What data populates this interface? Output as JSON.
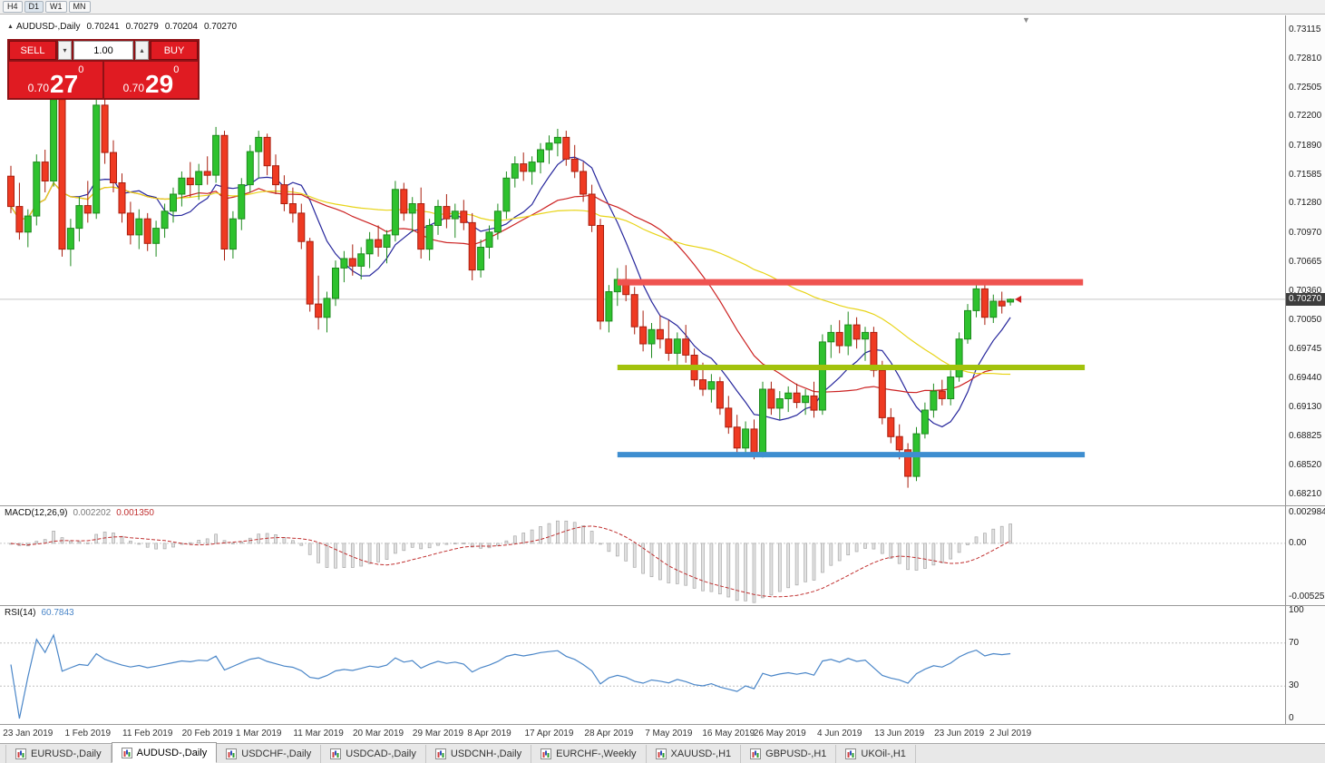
{
  "toolbar": {
    "timeframes": [
      "H4",
      "D1",
      "W1",
      "MN"
    ],
    "active": "D1"
  },
  "icons": {
    "symbol_marker": "▲",
    "chart_shift_marker": "▼",
    "volume_up": "▴",
    "volume_down": "▾"
  },
  "chart_info": {
    "symbol": "AUDUSD-,Daily",
    "open": "0.70241",
    "high": "0.70279",
    "low": "0.70204",
    "close": "0.70270"
  },
  "one_click": {
    "sell_label": "SELL",
    "buy_label": "BUY",
    "volume": "1.00",
    "bid_small": "0.70",
    "bid_big": "27",
    "bid_sup": "0",
    "ask_small": "0.70",
    "ask_big": "29",
    "ask_sup": "0"
  },
  "tabs": {
    "active_index": 1,
    "items": [
      "EURUSD-,Daily",
      "AUDUSD-,Daily",
      "USDCHF-,Daily",
      "USDCAD-,Daily",
      "USDCNH-,Daily",
      "EURCHF-,Weekly",
      "XAUUSD-,H1",
      "GBPUSD-,H1",
      "UKOil-,H1"
    ]
  },
  "chart_data": [
    {
      "type": "candlestick",
      "symbol": "AUDUSD-,Daily",
      "last_ohlc": {
        "open": 0.70241,
        "high": 0.70279,
        "low": 0.70204,
        "close": 0.7027
      },
      "current_price": 0.7027,
      "current_display": "0.70270",
      "y_ticks": [
        "0.73115",
        "0.72810",
        "0.72505",
        "0.72200",
        "0.71890",
        "0.71585",
        "0.71280",
        "0.70970",
        "0.70665",
        "0.70360",
        "0.70050",
        "0.69745",
        "0.69440",
        "0.69130",
        "0.68825",
        "0.68520",
        "0.68210"
      ],
      "x_ticks": [
        {
          "label": "23 Jan 2019",
          "index": 2
        },
        {
          "label": "1 Feb 2019",
          "index": 9
        },
        {
          "label": "11 Feb 2019",
          "index": 16
        },
        {
          "label": "20 Feb 2019",
          "index": 23
        },
        {
          "label": "1 Mar 2019",
          "index": 29
        },
        {
          "label": "11 Mar 2019",
          "index": 36
        },
        {
          "label": "20 Mar 2019",
          "index": 43
        },
        {
          "label": "29 Mar 2019",
          "index": 50
        },
        {
          "label": "8 Apr 2019",
          "index": 56
        },
        {
          "label": "17 Apr 2019",
          "index": 63
        },
        {
          "label": "28 Apr 2019",
          "index": 70
        },
        {
          "label": "7 May 2019",
          "index": 77
        },
        {
          "label": "16 May 2019",
          "index": 84
        },
        {
          "label": "26 May 2019",
          "index": 90
        },
        {
          "label": "4 Jun 2019",
          "index": 97
        },
        {
          "label": "13 Jun 2019",
          "index": 104
        },
        {
          "label": "23 Jun 2019",
          "index": 111
        },
        {
          "label": "2 Jul 2019",
          "index": 117
        }
      ],
      "moving_averages": [
        {
          "name": "ma-fast",
          "period": 8,
          "color": "#26269c"
        },
        {
          "name": "ma-medium",
          "period": 20,
          "color": "#cc2222"
        },
        {
          "name": "ma-slow",
          "period": 45,
          "color": "#e8d418"
        }
      ],
      "horizontal_lines": [
        {
          "name": "resistance-line",
          "price": 0.7045,
          "color": "#ef5350",
          "thickness": 7,
          "from_index": 71,
          "to_index": 125.5
        },
        {
          "name": "mid-support-line",
          "price": 0.6955,
          "color": "#a2c20c",
          "thickness": 6,
          "from_index": 71,
          "to_index": 125.7
        },
        {
          "name": "support-line",
          "price": 0.6863,
          "color": "#3e8ed0",
          "thickness": 6,
          "from_index": 71,
          "to_index": 125.7
        }
      ],
      "candles": [
        [
          0.7157,
          0.7168,
          0.7118,
          0.7125
        ],
        [
          0.7125,
          0.715,
          0.709,
          0.7098
        ],
        [
          0.7098,
          0.7122,
          0.7082,
          0.7115
        ],
        [
          0.7115,
          0.718,
          0.7105,
          0.7172
        ],
        [
          0.7172,
          0.7185,
          0.714,
          0.7152
        ],
        [
          0.7152,
          0.7242,
          0.7146,
          0.7238
        ],
        [
          0.7238,
          0.7244,
          0.7072,
          0.708
        ],
        [
          0.708,
          0.7112,
          0.7062,
          0.7102
        ],
        [
          0.7102,
          0.7135,
          0.7088,
          0.7126
        ],
        [
          0.7126,
          0.7152,
          0.7108,
          0.7118
        ],
        [
          0.7118,
          0.724,
          0.7112,
          0.7232
        ],
        [
          0.7232,
          0.7238,
          0.717,
          0.7182
        ],
        [
          0.7182,
          0.7195,
          0.714,
          0.715
        ],
        [
          0.715,
          0.716,
          0.7108,
          0.7118
        ],
        [
          0.7118,
          0.713,
          0.7085,
          0.7095
        ],
        [
          0.7095,
          0.7122,
          0.708,
          0.7112
        ],
        [
          0.7112,
          0.7118,
          0.7078,
          0.7086
        ],
        [
          0.7086,
          0.711,
          0.7072,
          0.7102
        ],
        [
          0.7102,
          0.7128,
          0.7092,
          0.712
        ],
        [
          0.712,
          0.7145,
          0.7108,
          0.7138
        ],
        [
          0.7138,
          0.7162,
          0.7125,
          0.7155
        ],
        [
          0.7155,
          0.7172,
          0.7135,
          0.7148
        ],
        [
          0.7148,
          0.717,
          0.7132,
          0.7162
        ],
        [
          0.7162,
          0.7178,
          0.7148,
          0.7158
        ],
        [
          0.7158,
          0.7209,
          0.715,
          0.72
        ],
        [
          0.72,
          0.7205,
          0.7068,
          0.708
        ],
        [
          0.708,
          0.712,
          0.707,
          0.7112
        ],
        [
          0.7112,
          0.7155,
          0.71,
          0.7148
        ],
        [
          0.7148,
          0.719,
          0.714,
          0.7183
        ],
        [
          0.7183,
          0.7205,
          0.7155,
          0.7198
        ],
        [
          0.7198,
          0.7202,
          0.7158,
          0.7168
        ],
        [
          0.7168,
          0.718,
          0.7138,
          0.7148
        ],
        [
          0.7148,
          0.7158,
          0.712,
          0.7128
        ],
        [
          0.7128,
          0.7145,
          0.7108,
          0.7118
        ],
        [
          0.7118,
          0.7128,
          0.708,
          0.7088
        ],
        [
          0.7088,
          0.7092,
          0.7014,
          0.7022
        ],
        [
          0.7022,
          0.7052,
          0.6995,
          0.7008
        ],
        [
          0.7008,
          0.7035,
          0.6992,
          0.7028
        ],
        [
          0.7028,
          0.7068,
          0.702,
          0.706
        ],
        [
          0.706,
          0.7078,
          0.7045,
          0.707
        ],
        [
          0.707,
          0.7085,
          0.7052,
          0.7062
        ],
        [
          0.7062,
          0.7082,
          0.7048,
          0.7075
        ],
        [
          0.7075,
          0.7098,
          0.706,
          0.709
        ],
        [
          0.709,
          0.7105,
          0.7072,
          0.7082
        ],
        [
          0.7082,
          0.71,
          0.7065,
          0.7095
        ],
        [
          0.7095,
          0.7152,
          0.7088,
          0.7143
        ],
        [
          0.7143,
          0.715,
          0.711,
          0.7118
        ],
        [
          0.7118,
          0.7135,
          0.7098,
          0.7128
        ],
        [
          0.7128,
          0.7145,
          0.707,
          0.708
        ],
        [
          0.708,
          0.7112,
          0.7068,
          0.7105
        ],
        [
          0.7105,
          0.7132,
          0.7095,
          0.7125
        ],
        [
          0.7125,
          0.7138,
          0.7102,
          0.7112
        ],
        [
          0.7112,
          0.7128,
          0.7092,
          0.712
        ],
        [
          0.712,
          0.7132,
          0.71,
          0.7108
        ],
        [
          0.7108,
          0.7118,
          0.7047,
          0.7058
        ],
        [
          0.7058,
          0.709,
          0.705,
          0.7082
        ],
        [
          0.7082,
          0.7105,
          0.707,
          0.7098
        ],
        [
          0.7098,
          0.7128,
          0.709,
          0.712
        ],
        [
          0.712,
          0.7162,
          0.7112,
          0.7155
        ],
        [
          0.7155,
          0.7178,
          0.7145,
          0.717
        ],
        [
          0.717,
          0.7182,
          0.7152,
          0.7162
        ],
        [
          0.7162,
          0.7178,
          0.7148,
          0.7172
        ],
        [
          0.7172,
          0.7192,
          0.716,
          0.7185
        ],
        [
          0.7185,
          0.72,
          0.717,
          0.7192
        ],
        [
          0.7192,
          0.7207,
          0.7178,
          0.7198
        ],
        [
          0.7198,
          0.7205,
          0.7168,
          0.7175
        ],
        [
          0.7175,
          0.719,
          0.7155,
          0.7162
        ],
        [
          0.7162,
          0.7172,
          0.713,
          0.7138
        ],
        [
          0.7138,
          0.7148,
          0.7098,
          0.7105
        ],
        [
          0.7105,
          0.7112,
          0.6995,
          0.7004
        ],
        [
          0.7004,
          0.7042,
          0.6992,
          0.7035
        ],
        [
          0.7035,
          0.706,
          0.702,
          0.7048
        ],
        [
          0.7048,
          0.7063,
          0.7025,
          0.7032
        ],
        [
          0.7032,
          0.704,
          0.699,
          0.6998
        ],
        [
          0.6998,
          0.7015,
          0.6972,
          0.698
        ],
        [
          0.698,
          0.7002,
          0.6965,
          0.6995
        ],
        [
          0.6995,
          0.701,
          0.6975,
          0.6985
        ],
        [
          0.6985,
          0.7005,
          0.6962,
          0.697
        ],
        [
          0.697,
          0.6992,
          0.6958,
          0.6985
        ],
        [
          0.6985,
          0.7,
          0.696,
          0.6968
        ],
        [
          0.6968,
          0.6975,
          0.6935,
          0.6942
        ],
        [
          0.6942,
          0.696,
          0.6925,
          0.6932
        ],
        [
          0.6932,
          0.6948,
          0.6918,
          0.694
        ],
        [
          0.694,
          0.6945,
          0.6905,
          0.6912
        ],
        [
          0.6912,
          0.6925,
          0.6885,
          0.6892
        ],
        [
          0.6892,
          0.6905,
          0.6861,
          0.687
        ],
        [
          0.687,
          0.6898,
          0.6862,
          0.689
        ],
        [
          0.689,
          0.69,
          0.6858,
          0.6865
        ],
        [
          0.6865,
          0.694,
          0.686,
          0.6932
        ],
        [
          0.6932,
          0.694,
          0.6905,
          0.6912
        ],
        [
          0.6912,
          0.693,
          0.69,
          0.6922
        ],
        [
          0.6922,
          0.6935,
          0.6908,
          0.6928
        ],
        [
          0.6928,
          0.6938,
          0.6912,
          0.6918
        ],
        [
          0.6918,
          0.6932,
          0.6905,
          0.6925
        ],
        [
          0.6925,
          0.694,
          0.6902,
          0.691
        ],
        [
          0.691,
          0.699,
          0.6905,
          0.6982
        ],
        [
          0.6982,
          0.7,
          0.6965,
          0.6992
        ],
        [
          0.6992,
          0.7005,
          0.697,
          0.6978
        ],
        [
          0.6978,
          0.7014,
          0.6968,
          0.7
        ],
        [
          0.7,
          0.7008,
          0.6975,
          0.6985
        ],
        [
          0.6985,
          0.6998,
          0.6962,
          0.6992
        ],
        [
          0.6992,
          0.6998,
          0.6945,
          0.6952
        ],
        [
          0.6952,
          0.6962,
          0.6895,
          0.6902
        ],
        [
          0.6902,
          0.6912,
          0.6875,
          0.6882
        ],
        [
          0.6882,
          0.6895,
          0.6858,
          0.6868
        ],
        [
          0.6868,
          0.6875,
          0.6828,
          0.684
        ],
        [
          0.684,
          0.6892,
          0.6835,
          0.6885
        ],
        [
          0.6885,
          0.6918,
          0.688,
          0.691
        ],
        [
          0.691,
          0.6938,
          0.6902,
          0.693
        ],
        [
          0.693,
          0.6942,
          0.6915,
          0.6922
        ],
        [
          0.6922,
          0.6952,
          0.6915,
          0.6945
        ],
        [
          0.6945,
          0.6992,
          0.694,
          0.6985
        ],
        [
          0.6985,
          0.7022,
          0.698,
          0.7015
        ],
        [
          0.7015,
          0.7048,
          0.7008,
          0.7038
        ],
        [
          0.7038,
          0.7042,
          0.7,
          0.7008
        ],
        [
          0.7008,
          0.7032,
          0.7002,
          0.7025
        ],
        [
          0.7025,
          0.7035,
          0.7012,
          0.702
        ],
        [
          0.70241,
          0.70279,
          0.70204,
          0.7027
        ]
      ]
    },
    {
      "type": "bar",
      "name": "MACD",
      "display": {
        "name": "MACD(12,26,9)",
        "macd": "0.002202",
        "signal": "0.001350"
      },
      "histogram_color": "#e2e2e2",
      "signal_color": "#c03030",
      "axis_labels": {
        "top": "0.002984",
        "zero": "0.00",
        "bottom": "-0.00525"
      },
      "last_values": {
        "macd": 0.002202,
        "signal": 0.00135
      },
      "computed_from": "main candle closes: EMA12-EMA26, signal = SMA9 of MACD"
    },
    {
      "type": "line",
      "name": "RSI",
      "display": {
        "name": "RSI(14)",
        "value": "60.7843"
      },
      "color": "#4a86c8",
      "range": [
        0,
        100
      ],
      "levels": [
        70,
        30
      ],
      "axis_labels": [
        "100",
        "70",
        "30",
        "0"
      ],
      "last_value": 60.7843,
      "computed_from": "main candle closes, Wilder RSI period 14"
    }
  ]
}
